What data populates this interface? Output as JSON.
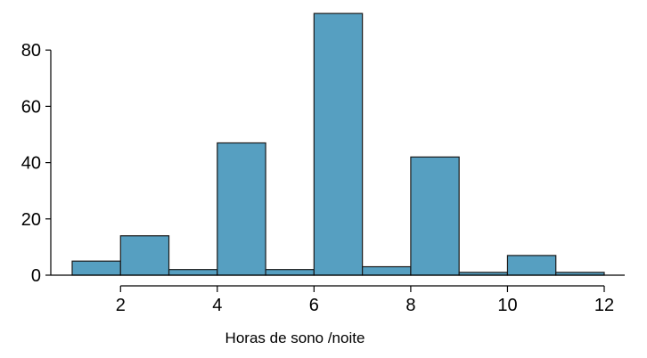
{
  "chart_data": {
    "type": "bar",
    "title": "",
    "xlabel": "Horas de sono /noite",
    "ylabel": "",
    "bins": [
      {
        "x0": 1,
        "x1": 2,
        "count": 5
      },
      {
        "x0": 2,
        "x1": 3,
        "count": 14
      },
      {
        "x0": 3,
        "x1": 4,
        "count": 2
      },
      {
        "x0": 4,
        "x1": 5,
        "count": 47
      },
      {
        "x0": 5,
        "x1": 6,
        "count": 2
      },
      {
        "x0": 6,
        "x1": 7,
        "count": 93
      },
      {
        "x0": 7,
        "x1": 8,
        "count": 3
      },
      {
        "x0": 8,
        "x1": 9,
        "count": 42
      },
      {
        "x0": 9,
        "x1": 10,
        "count": 1
      },
      {
        "x0": 10,
        "x1": 11,
        "count": 7
      },
      {
        "x0": 11,
        "x1": 12,
        "count": 1
      }
    ],
    "xticks": [
      2,
      4,
      6,
      8,
      10,
      12
    ],
    "yticks": [
      0,
      20,
      40,
      60,
      80
    ],
    "xlim": [
      1,
      12
    ],
    "ylim": [
      0,
      93
    ],
    "grid": false,
    "bar_color": "#569fc1",
    "edge_color": "#1a1a1a"
  }
}
